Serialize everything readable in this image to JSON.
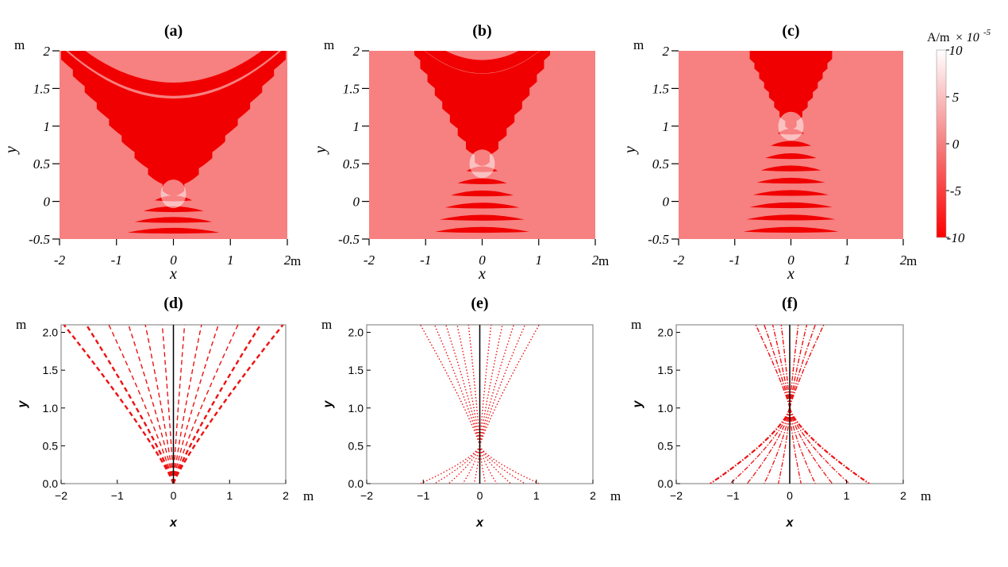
{
  "colors": {
    "background_field": "#f78080",
    "stripe_red": "#f00000",
    "stripe_white": "#ffffff",
    "ray_red": "#ee1111",
    "axis_black": "#000000"
  },
  "chart_data": [
    {
      "id": "a",
      "type": "heatmap",
      "title": "(a)",
      "xlabel": "x",
      "ylabel": "y",
      "unit": "m",
      "xlim": [
        -2,
        2
      ],
      "ylim": [
        -0.5,
        2
      ],
      "xticks": [
        "-2",
        "-1",
        "0",
        "1",
        "2"
      ],
      "yticks": [
        "-0.5",
        "0",
        "0.5",
        "1",
        "1.5",
        "2"
      ],
      "focus_y": 0.1,
      "beam_half_width_at_top": 2.0
    },
    {
      "id": "b",
      "type": "heatmap",
      "title": "(b)",
      "xlabel": "x",
      "ylabel": "y",
      "unit": "m",
      "xlim": [
        -2,
        2
      ],
      "ylim": [
        -0.5,
        2
      ],
      "xticks": [
        "-2",
        "-1",
        "0",
        "1",
        "2"
      ],
      "yticks": [
        "-0.5",
        "0",
        "0.5",
        "1",
        "1.5",
        "2"
      ],
      "focus_y": 0.5,
      "beam_half_width_at_top": 1.2
    },
    {
      "id": "c",
      "type": "heatmap",
      "title": "(c)",
      "xlabel": "x",
      "ylabel": "y",
      "unit": "m",
      "xlim": [
        -2,
        2
      ],
      "ylim": [
        -0.5,
        2
      ],
      "xticks": [
        "-2",
        "-1",
        "0",
        "1",
        "2"
      ],
      "yticks": [
        "-0.5",
        "0",
        "0.5",
        "1",
        "1.5",
        "2"
      ],
      "focus_y": 1.0,
      "beam_half_width_at_top": 0.75
    },
    {
      "id": "d",
      "type": "line",
      "title": "(d)",
      "xlabel": "x",
      "ylabel": "y",
      "unit": "m",
      "xlim": [
        -2,
        2
      ],
      "ylim": [
        0,
        2.1
      ],
      "xticks": [
        "−2",
        "−1",
        "0",
        "1",
        "2"
      ],
      "yticks": [
        "0.0",
        "0.5",
        "1.0",
        "1.5",
        "2.0"
      ],
      "focus_y": 0.0,
      "ray_x_at_top": [
        -1.95,
        -1.55,
        -1.15,
        -0.8,
        -0.5,
        -0.2,
        0.2,
        0.5,
        0.8,
        1.15,
        1.55,
        1.95
      ],
      "dash": "6,4"
    },
    {
      "id": "e",
      "type": "line",
      "title": "(e)",
      "xlabel": "x",
      "ylabel": "y",
      "unit": "m",
      "xlim": [
        -2,
        2
      ],
      "ylim": [
        0,
        2.1
      ],
      "xticks": [
        "−2",
        "−1",
        "0",
        "1",
        "2"
      ],
      "yticks": [
        "0.0",
        "0.5",
        "1.0",
        "1.5",
        "2.0"
      ],
      "focus_y": 0.5,
      "ray_x_at_top": [
        -1.05,
        -0.8,
        -0.6,
        -0.4,
        -0.2,
        0.2,
        0.4,
        0.6,
        0.8,
        1.05
      ],
      "ray_x_at_bottom": [
        -1.05,
        -0.8,
        -0.55,
        -0.3,
        -0.1,
        0.1,
        0.3,
        0.55,
        0.8,
        1.05
      ],
      "dash": "1.5,2.5"
    },
    {
      "id": "f",
      "type": "line",
      "title": "(f)",
      "xlabel": "x",
      "ylabel": "y",
      "unit": "m",
      "xlim": [
        -2,
        2
      ],
      "ylim": [
        0,
        2.1
      ],
      "xticks": [
        "−2",
        "−1",
        "0",
        "1",
        "2"
      ],
      "yticks": [
        "0.0",
        "0.5",
        "1.0",
        "1.5",
        "2.0"
      ],
      "focus_y": 1.0,
      "ray_x_at_top": [
        -0.6,
        -0.45,
        -0.3,
        -0.15,
        0.15,
        0.3,
        0.45,
        0.6
      ],
      "ray_x_at_bottom": [
        -1.4,
        -1.05,
        -0.75,
        -0.45,
        -0.2,
        0.2,
        0.45,
        0.75,
        1.05,
        1.4
      ],
      "dash": "6,2,1.5,2"
    }
  ],
  "colorbar": {
    "unit_label": "A/m",
    "scale_prefix": "× 10",
    "scale_exponent": "-5",
    "ticks": [
      "10",
      "5",
      "0",
      "-5",
      "-10"
    ],
    "range": [
      -10,
      10
    ]
  }
}
